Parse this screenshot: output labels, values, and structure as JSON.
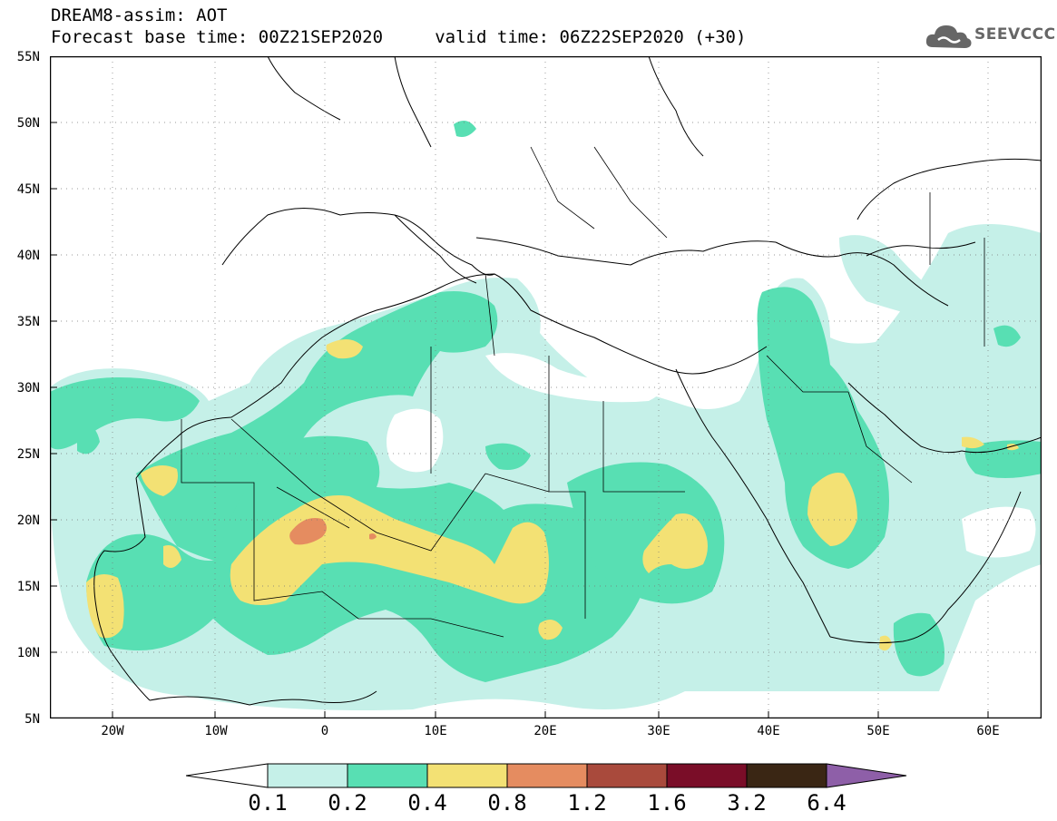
{
  "header": {
    "title_line1": "DREAM8-assim: AOT",
    "title_line2": "Forecast base time: 00Z21SEP2020     valid time: 06Z22SEP2020 (+30)",
    "logo_text": "SEEVCCC"
  },
  "axes": {
    "lat_labels": [
      "55N",
      "50N",
      "45N",
      "40N",
      "35N",
      "30N",
      "25N",
      "20N",
      "15N",
      "10N",
      "5N"
    ],
    "lon_labels": [
      "20W",
      "10W",
      "0",
      "10E",
      "20E",
      "30E",
      "40E",
      "50E",
      "60E"
    ]
  },
  "legend": {
    "levels": [
      "0.1",
      "0.2",
      "0.4",
      "0.8",
      "1.2",
      "1.6",
      "3.2",
      "6.4"
    ],
    "colors": [
      "#ffffff",
      "#c5f0e8",
      "#58dfb3",
      "#f3e174",
      "#e58c60",
      "#a94a3c",
      "#7a0d28",
      "#3a2614",
      "#8e5fa8"
    ]
  }
}
